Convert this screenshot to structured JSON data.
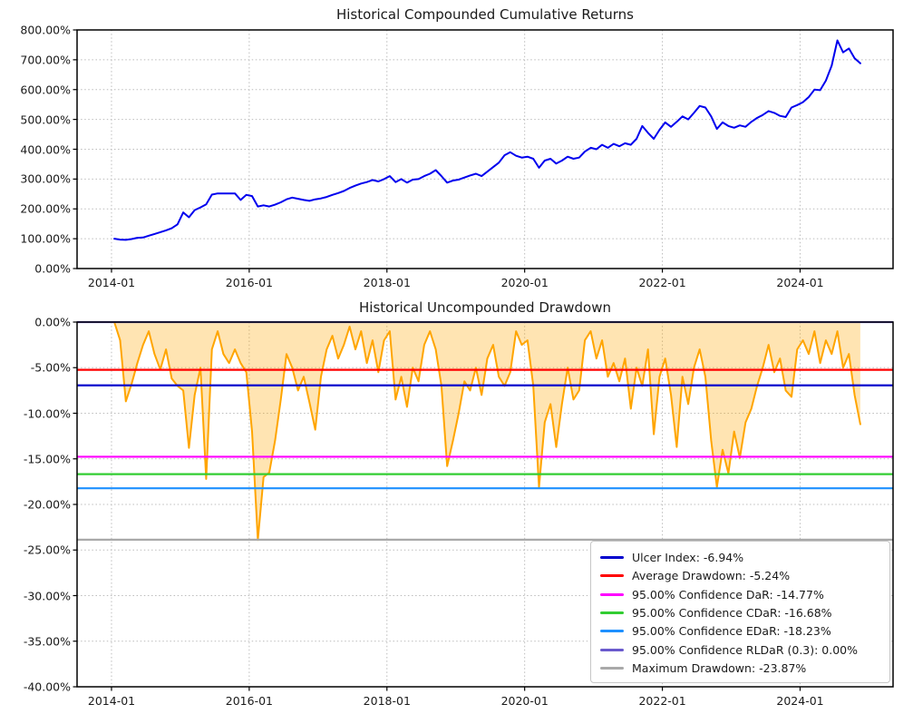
{
  "figure": {
    "background": "#ffffff"
  },
  "chart_data": [
    {
      "type": "line",
      "title": "Historical Compounded Cumulative Returns",
      "grid": "dotted",
      "legend_position": "none",
      "xlim_years": [
        2013.5,
        2025.35
      ],
      "ylim": [
        0,
        800
      ],
      "y_ticks": [
        {
          "v": 0,
          "label": "0.00%"
        },
        {
          "v": 100,
          "label": "100.00%"
        },
        {
          "v": 200,
          "label": "200.00%"
        },
        {
          "v": 300,
          "label": "300.00%"
        },
        {
          "v": 400,
          "label": "400.00%"
        },
        {
          "v": 500,
          "label": "500.00%"
        },
        {
          "v": 600,
          "label": "600.00%"
        },
        {
          "v": 700,
          "label": "700.00%"
        },
        {
          "v": 800,
          "label": "800.00%"
        }
      ],
      "x_ticks": [
        {
          "year": 2014,
          "label": "2014-01"
        },
        {
          "year": 2016,
          "label": "2016-01"
        },
        {
          "year": 2018,
          "label": "2018-01"
        },
        {
          "year": 2020,
          "label": "2020-01"
        },
        {
          "year": 2022,
          "label": "2022-01"
        },
        {
          "year": 2024,
          "label": "2024-01"
        }
      ],
      "series": [
        {
          "name": "Compounded Cumulative Returns",
          "color": "#0000ee",
          "x_start": "2014-01",
          "x_freq": "monthly",
          "values": [
            100,
            97,
            96,
            99,
            103,
            104,
            110,
            116,
            122,
            128,
            135,
            148,
            188,
            172,
            196,
            205,
            215,
            248,
            252,
            252,
            252,
            252,
            230,
            247,
            243,
            208,
            212,
            208,
            214,
            222,
            232,
            238,
            234,
            230,
            227,
            232,
            235,
            240,
            247,
            253,
            260,
            270,
            278,
            285,
            290,
            297,
            292,
            300,
            310,
            290,
            300,
            288,
            298,
            300,
            310,
            318,
            330,
            310,
            288,
            295,
            298,
            305,
            312,
            318,
            310,
            325,
            340,
            355,
            380,
            390,
            378,
            372,
            375,
            368,
            338,
            362,
            368,
            352,
            362,
            375,
            368,
            372,
            392,
            405,
            400,
            415,
            405,
            418,
            410,
            420,
            415,
            435,
            478,
            455,
            435,
            465,
            490,
            475,
            492,
            510,
            500,
            522,
            545,
            540,
            510,
            468,
            490,
            478,
            472,
            480,
            475,
            492,
            505,
            515,
            528,
            522,
            512,
            508,
            540,
            548,
            558,
            575,
            600,
            598,
            630,
            680,
            765,
            725,
            738,
            705,
            688
          ]
        }
      ]
    },
    {
      "type": "area",
      "title": "Historical Uncompounded Drawdown",
      "grid": "dotted",
      "legend_position": "lower right",
      "xlim_years": [
        2013.5,
        2025.35
      ],
      "ylim": [
        -40,
        0
      ],
      "y_ticks": [
        {
          "v": 0,
          "label": "0.00%"
        },
        {
          "v": -5,
          "label": "-5.00%"
        },
        {
          "v": -10,
          "label": "-10.00%"
        },
        {
          "v": -15,
          "label": "-15.00%"
        },
        {
          "v": -20,
          "label": "-20.00%"
        },
        {
          "v": -25,
          "label": "-25.00%"
        },
        {
          "v": -30,
          "label": "-30.00%"
        },
        {
          "v": -35,
          "label": "-35.00%"
        },
        {
          "v": -40,
          "label": "-40.00%"
        }
      ],
      "x_ticks": [
        {
          "year": 2014,
          "label": "2014-01"
        },
        {
          "year": 2016,
          "label": "2016-01"
        },
        {
          "year": 2018,
          "label": "2018-01"
        },
        {
          "year": 2020,
          "label": "2020-01"
        },
        {
          "year": 2022,
          "label": "2022-01"
        },
        {
          "year": 2024,
          "label": "2024-01"
        }
      ],
      "series": [
        {
          "name": "Uncompounded Drawdown",
          "color": "#ffa500",
          "fill_color": "rgba(255,165,0,0.3)",
          "x_start": "2014-01",
          "x_freq": "monthly",
          "values": [
            0,
            -2,
            -8.7,
            -6.8,
            -4.5,
            -2.5,
            -1,
            -3.5,
            -5.2,
            -3,
            -6.2,
            -7,
            -7.5,
            -13.8,
            -8,
            -5,
            -17.2,
            -3,
            -1,
            -3.5,
            -4.5,
            -3,
            -4.5,
            -5.5,
            -12,
            -23.9,
            -17,
            -16.5,
            -13,
            -8.5,
            -3.5,
            -5,
            -7.5,
            -6,
            -8.8,
            -11.8,
            -6,
            -3,
            -1.5,
            -4,
            -2.5,
            -0.5,
            -3,
            -1,
            -4.5,
            -2,
            -5.5,
            -2,
            -1,
            -8.5,
            -6,
            -9.3,
            -5,
            -6.5,
            -2.5,
            -1,
            -3,
            -7,
            -15.8,
            -13,
            -10,
            -6.5,
            -7.5,
            -5,
            -8,
            -4,
            -2.5,
            -6,
            -7,
            -5.5,
            -1,
            -2.5,
            -2,
            -7,
            -18.1,
            -11,
            -9,
            -13.7,
            -9,
            -5,
            -8.5,
            -7.5,
            -2,
            -1,
            -4,
            -2,
            -6,
            -4.5,
            -6.5,
            -4,
            -9.5,
            -5,
            -7,
            -3,
            -12.3,
            -6,
            -4,
            -8,
            -13.7,
            -6,
            -9,
            -5,
            -3,
            -6,
            -13,
            -18.1,
            -14,
            -16.6,
            -12,
            -14.9,
            -11,
            -9.5,
            -7,
            -5,
            -2.5,
            -5.5,
            -4,
            -7.5,
            -8.2,
            -3,
            -2,
            -3.5,
            -1,
            -4.5,
            -2,
            -3.5,
            -1,
            -5,
            -3.5,
            -8,
            -11.2
          ]
        }
      ],
      "hlines": [
        {
          "name": "ulcer-index",
          "label": "Ulcer Index: -6.94%",
          "value": -6.94,
          "color": "#0000cd"
        },
        {
          "name": "avg-drawdown",
          "label": "Average Drawdown: -5.24%",
          "value": -5.24,
          "color": "#ff0000"
        },
        {
          "name": "dar",
          "label": "95.00% Confidence DaR: -14.77%",
          "value": -14.77,
          "color": "#ff00ff"
        },
        {
          "name": "cdar",
          "label": "95.00% Confidence CDaR: -16.68%",
          "value": -16.68,
          "color": "#32cd32"
        },
        {
          "name": "edar",
          "label": "95.00% Confidence EDaR: -18.23%",
          "value": -18.23,
          "color": "#1e90ff"
        },
        {
          "name": "rldar",
          "label": "95.00% Confidence RLDaR (0.3): 0.00%",
          "value": 0.0,
          "color": "#6a5acd"
        },
        {
          "name": "max-drawdown",
          "label": "Maximum Drawdown: -23.87%",
          "value": -23.87,
          "color": "#a9a9a9"
        }
      ]
    }
  ]
}
